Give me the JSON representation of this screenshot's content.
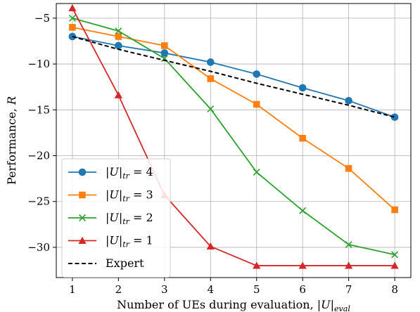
{
  "chart_data": {
    "type": "line",
    "xlabel_text": "Number of UEs during evaluation, ",
    "xlabel_math": "|U|",
    "xlabel_sub": "eval",
    "ylabel_text": "Performance, ",
    "ylabel_math": "R",
    "x": [
      1,
      2,
      3,
      4,
      5,
      6,
      7,
      8
    ],
    "xlim": [
      0.65,
      8.35
    ],
    "ylim": [
      -33.3,
      -3.4
    ],
    "xticks": [
      1,
      2,
      3,
      4,
      5,
      6,
      7,
      8
    ],
    "yticks": [
      -5,
      -10,
      -15,
      -20,
      -25,
      -30
    ],
    "ytick_labels": [
      "−5",
      "−10",
      "−15",
      "−20",
      "−25",
      "−30"
    ],
    "grid": true,
    "legend_position": "bottom-left",
    "series": [
      {
        "name": "|U|tr = 4",
        "name_main": "|U|",
        "name_sub": "tr",
        "name_rhs": " = 4",
        "color": "#1f77b4",
        "marker": "circle",
        "linestyle": "solid",
        "values": [
          -7.0,
          -8.0,
          -8.8,
          -9.8,
          -11.1,
          -12.6,
          -14.0,
          -15.8
        ]
      },
      {
        "name": "|U|tr = 3",
        "name_main": "|U|",
        "name_sub": "tr",
        "name_rhs": " = 3",
        "color": "#ff7f0e",
        "marker": "square",
        "linestyle": "solid",
        "values": [
          -6.0,
          -7.0,
          -8.0,
          -11.6,
          -14.4,
          -18.1,
          -21.4,
          -25.9
        ]
      },
      {
        "name": "|U|tr = 2",
        "name_main": "|U|",
        "name_sub": "tr",
        "name_rhs": " = 2",
        "color": "#2ca02c",
        "marker": "x",
        "linestyle": "solid",
        "values": [
          -5.0,
          -6.4,
          -9.4,
          -14.9,
          -21.8,
          -26.0,
          -29.7,
          -30.8
        ]
      },
      {
        "name": "|U|tr = 1",
        "name_main": "|U|",
        "name_sub": "tr",
        "name_rhs": " = 1",
        "color": "#d62728",
        "marker": "triangle",
        "linestyle": "solid",
        "values": [
          -3.9,
          -13.4,
          -24.3,
          -29.9,
          -32.0,
          -32.0,
          -32.0,
          -32.0
        ]
      },
      {
        "name": "Expert",
        "name_main": "Expert",
        "name_sub": "",
        "name_rhs": "",
        "color": "#000000",
        "marker": "none",
        "linestyle": "dashed",
        "values": [
          -7.0,
          -8.4,
          -9.6,
          -10.8,
          -12.1,
          -13.3,
          -14.5,
          -15.8
        ]
      }
    ]
  }
}
